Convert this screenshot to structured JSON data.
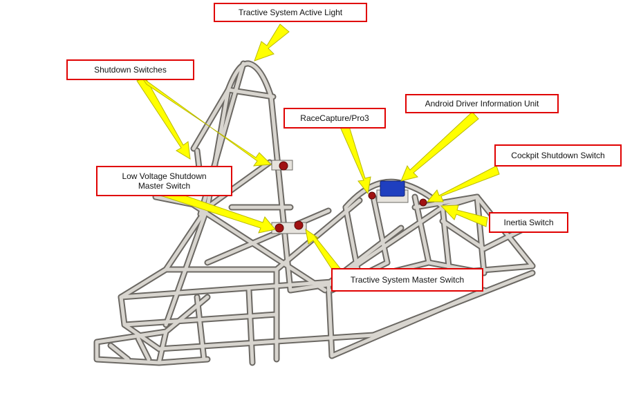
{
  "diagram": {
    "labels": {
      "tsal": "Tractive System Active Light",
      "shutdown_switches": "Shutdown Switches",
      "racecapture": "RaceCapture/Pro3",
      "android_unit": "Android Driver Information Unit",
      "cockpit_switch": "Cockpit Shutdown Switch",
      "lv_master_line1": "Low Voltage Shutdown",
      "lv_master_line2": "Master Switch",
      "inertia_switch": "Inertia Switch",
      "ts_master_switch": "Tractive System Master Switch"
    },
    "colors": {
      "arrow_fill": "#ffff00",
      "arrow_stroke": "#b8b800",
      "label_border": "#e00000",
      "frame_tube": "#c9c6c0",
      "frame_edge": "#6b6863",
      "switch_red": "#a01212",
      "display_blue": "#1f3fbf"
    },
    "icons": [
      "frame-illustration",
      "callout-arrow"
    ]
  }
}
